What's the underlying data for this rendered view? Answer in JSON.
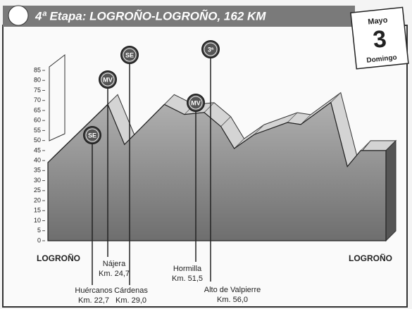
{
  "chart_data": {
    "type": "area",
    "title": "4ª Etapa: LOGROÑO-LOGROÑO, 162 KM",
    "date": {
      "month": "Mayo",
      "day": "3",
      "weekday": "Domingo"
    },
    "x": [
      0,
      28.7,
      36.7,
      55.8,
      65.4,
      74.9,
      82.9,
      89.3,
      98.9,
      114.8,
      121.2,
      135.6,
      143.5,
      149.9,
      162
    ],
    "values": [
      39,
      68,
      48,
      68,
      63,
      64,
      57,
      46,
      53,
      59,
      58,
      69,
      37,
      45,
      45
    ],
    "color": "#8a8a8a",
    "xlim": [
      0,
      162
    ],
    "ylim": [
      0,
      85
    ],
    "yticks": [
      0,
      5,
      10,
      15,
      20,
      25,
      30,
      35,
      40,
      45,
      50,
      55,
      60,
      65,
      70,
      75,
      80,
      85
    ],
    "start_label": "LOGROÑO",
    "end_label": "LOGROÑO",
    "annotations": [
      {
        "badge": "SE",
        "place": "Huércanos",
        "km": "Km. 22,7"
      },
      {
        "badge": "MV",
        "place": "Nájera",
        "km": "Km. 24,7"
      },
      {
        "badge": "SE",
        "place": "Cárdenas",
        "km": "Km. 29,0"
      },
      {
        "badge": "MV",
        "place": "Hormilla",
        "km": "Km. 51,5"
      },
      {
        "badge": "3ª",
        "place": "Alto de Valpierre",
        "km": "Km. 56,0"
      }
    ]
  }
}
